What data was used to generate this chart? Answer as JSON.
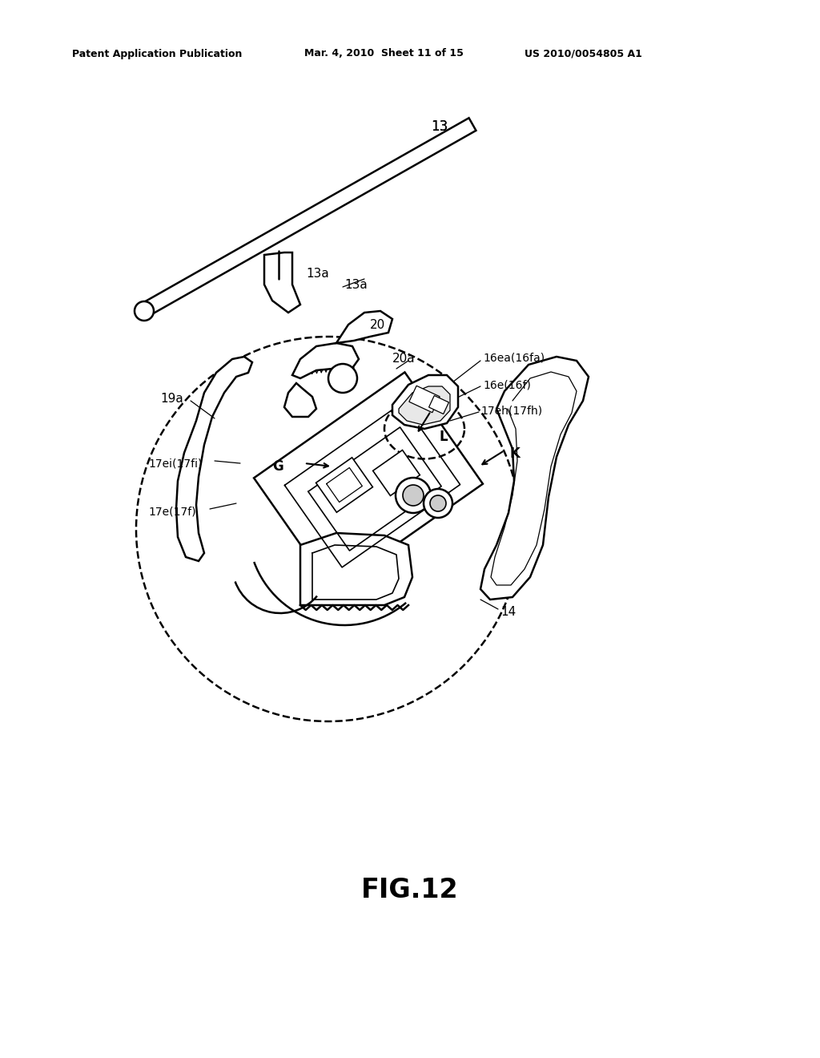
{
  "title": "FIG.12",
  "header_left": "Patent Application Publication",
  "header_center": "Mar. 4, 2010  Sheet 11 of 15",
  "header_right": "US 2010/0054805 A1",
  "bg_color": "#ffffff",
  "line_color": "#000000"
}
